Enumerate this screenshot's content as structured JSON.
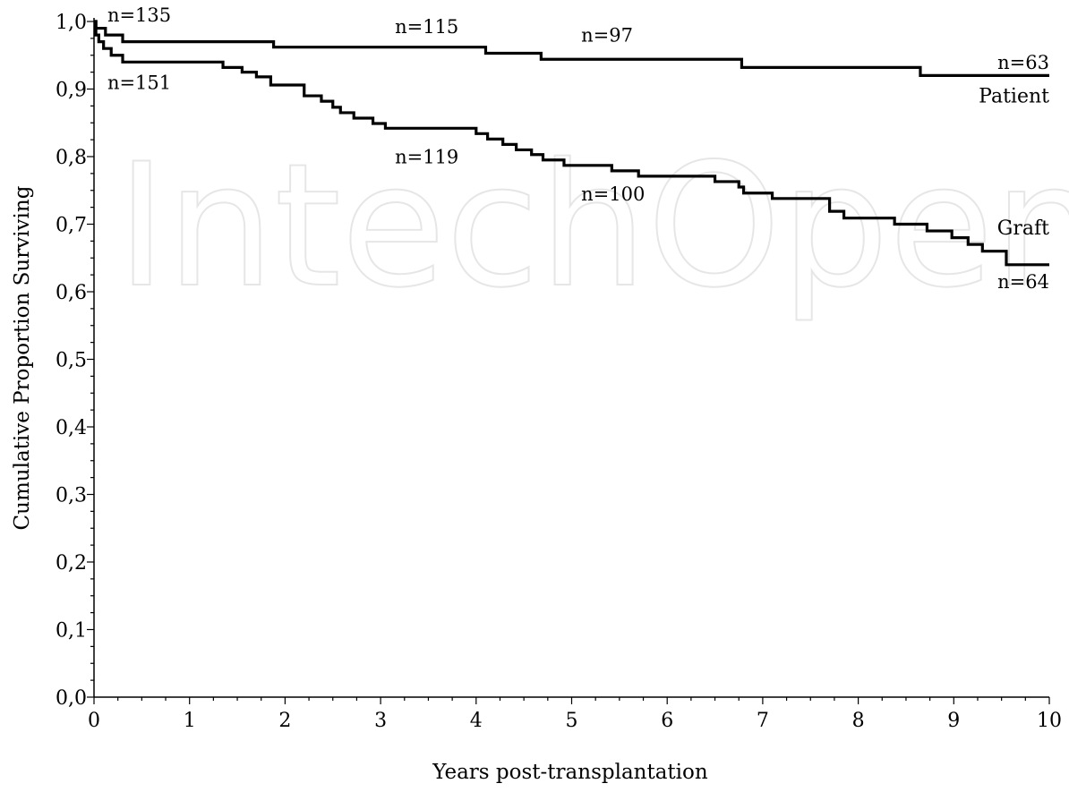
{
  "chart_data": {
    "type": "line",
    "step": true,
    "xlabel": "Years post-transplantation",
    "ylabel": "Cumulative Proportion Surviving",
    "xlim": [
      0,
      10
    ],
    "ylim": [
      0,
      1.0
    ],
    "x_ticks": [
      "0",
      "1",
      "2",
      "3",
      "4",
      "5",
      "6",
      "7",
      "8",
      "9",
      "10"
    ],
    "y_ticks": [
      "0,0",
      "0,1",
      "0,2",
      "0,3",
      "0,4",
      "0,5",
      "0,6",
      "0,7",
      "0,8",
      "0,9",
      "1,0"
    ],
    "grid": false,
    "watermark": "IntechOpen",
    "series": [
      {
        "name": "Patient",
        "color": "#000000",
        "x": [
          0,
          0.02,
          0.05,
          0.12,
          0.2,
          0.3,
          1.88,
          4.1,
          4.68,
          6.78,
          8.65,
          10
        ],
        "y": [
          1.0,
          0.99,
          0.99,
          0.98,
          0.98,
          0.97,
          0.962,
          0.953,
          0.944,
          0.932,
          0.92,
          0.92
        ]
      },
      {
        "name": "Graft",
        "color": "#000000",
        "x": [
          0,
          0.02,
          0.05,
          0.1,
          0.18,
          0.3,
          1.35,
          1.55,
          1.7,
          1.85,
          2.2,
          2.38,
          2.5,
          2.58,
          2.72,
          2.92,
          3.05,
          4.0,
          4.12,
          4.28,
          4.42,
          4.58,
          4.7,
          4.92,
          5.42,
          5.7,
          6.5,
          6.75,
          6.8,
          7.1,
          7.7,
          7.85,
          8.38,
          8.72,
          8.98,
          9.15,
          9.3,
          9.55,
          10
        ],
        "y": [
          1.0,
          0.98,
          0.97,
          0.96,
          0.95,
          0.94,
          0.932,
          0.925,
          0.918,
          0.906,
          0.89,
          0.882,
          0.873,
          0.865,
          0.857,
          0.849,
          0.842,
          0.834,
          0.826,
          0.818,
          0.81,
          0.803,
          0.795,
          0.787,
          0.779,
          0.771,
          0.763,
          0.755,
          0.746,
          0.738,
          0.719,
          0.709,
          0.7,
          0.69,
          0.68,
          0.67,
          0.66,
          0.64,
          0.64
        ]
      }
    ],
    "series_labels": [
      {
        "text": "Patient",
        "x": 10,
        "y": 0.88,
        "anchor": "end"
      },
      {
        "text": "Graft",
        "x": 10,
        "y": 0.685,
        "anchor": "end"
      }
    ],
    "annotations": [
      {
        "text": "n=135",
        "x": 0.14,
        "y": 1.0,
        "anchor": "start"
      },
      {
        "text": "n=115",
        "x": 3.15,
        "y": 0.983,
        "anchor": "start"
      },
      {
        "text": "n=97",
        "x": 5.1,
        "y": 0.97,
        "anchor": "start"
      },
      {
        "text": "n=63",
        "x": 10,
        "y": 0.93,
        "anchor": "end"
      },
      {
        "text": "n=151",
        "x": 0.14,
        "y": 0.9,
        "anchor": "start"
      },
      {
        "text": "n=119",
        "x": 3.15,
        "y": 0.79,
        "anchor": "start"
      },
      {
        "text": "n=100",
        "x": 5.1,
        "y": 0.735,
        "anchor": "start"
      },
      {
        "text": "n=64",
        "x": 10,
        "y": 0.605,
        "anchor": "end"
      }
    ]
  }
}
